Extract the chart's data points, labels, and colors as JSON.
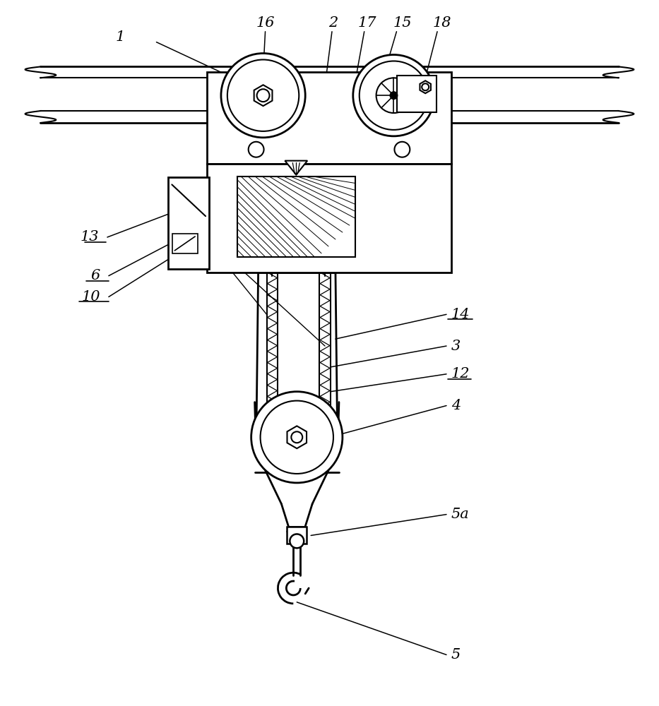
{
  "bg_color": "#ffffff",
  "line_color": "#000000",
  "lw_main": 1.8,
  "lw_thin": 1.0,
  "lw_leader": 1.1,
  "fontsize": 15
}
